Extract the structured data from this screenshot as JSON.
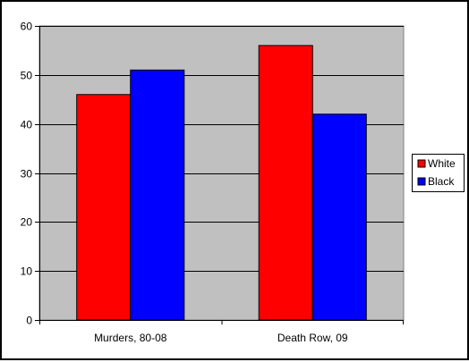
{
  "chart_data": {
    "type": "bar",
    "categories": [
      "Murders, 80-08",
      "Death Row, 09"
    ],
    "series": [
      {
        "name": "White",
        "color": "#ff0000",
        "values": [
          46,
          56
        ]
      },
      {
        "name": "Black",
        "color": "#0000ff",
        "values": [
          51,
          42
        ]
      }
    ],
    "title": "",
    "xlabel": "",
    "ylabel": "",
    "ylim": [
      0,
      60
    ],
    "yticks": [
      "0",
      "10",
      "20",
      "30",
      "40",
      "50",
      "60"
    ],
    "plot_background": "#c0c0c0",
    "grid": true,
    "legend_position": "right"
  }
}
